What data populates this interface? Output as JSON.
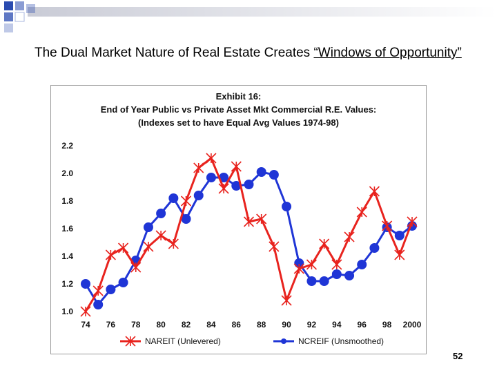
{
  "slide": {
    "title_prefix": "The Dual Market Nature of Real Estate Creates ",
    "title_link": "“Windows of Opportunity”",
    "page_number": "52"
  },
  "colors": {
    "nareit": "#e8231e",
    "ncreif": "#1f35d6",
    "deco_blue": "#2a4bb0",
    "deco_bar": "#c9cbd6"
  },
  "chart_data": {
    "type": "line",
    "title": "Exhibit 16:",
    "subtitle": "End of Year Public vs Private Asset Mkt Commercial R.E. Values:",
    "subtitle2": "(Indexes set to have Equal Avg Values 1974-98)",
    "xlabel": "",
    "ylabel": "",
    "ylim": [
      1.0,
      2.2
    ],
    "yticks": [
      1.0,
      1.2,
      1.4,
      1.6,
      1.8,
      2.0,
      2.2
    ],
    "ytick_labels": [
      "1.0",
      "1.2",
      "1.4",
      "1.6",
      "1.8",
      "2.0",
      "2.2"
    ],
    "xlim": [
      1974,
      2000
    ],
    "x": [
      1974,
      1975,
      1976,
      1977,
      1978,
      1979,
      1980,
      1981,
      1982,
      1983,
      1984,
      1985,
      1986,
      1987,
      1988,
      1989,
      1990,
      1991,
      1992,
      1993,
      1994,
      1995,
      1996,
      1997,
      1998,
      1999,
      2000
    ],
    "xtick_values": [
      1974,
      1976,
      1978,
      1980,
      1982,
      1984,
      1986,
      1988,
      1990,
      1992,
      1994,
      1996,
      1998,
      2000
    ],
    "xtick_labels": [
      "74",
      "76",
      "78",
      "80",
      "82",
      "84",
      "86",
      "88",
      "90",
      "92",
      "94",
      "96",
      "98",
      "2000"
    ],
    "grid": false,
    "legend_position": "bottom",
    "series": [
      {
        "name": "NAREIT (Unlevered)",
        "marker": "star",
        "values": [
          1.0,
          1.15,
          1.41,
          1.46,
          1.32,
          1.47,
          1.55,
          1.49,
          1.8,
          2.04,
          2.11,
          1.89,
          2.05,
          1.65,
          1.67,
          1.47,
          1.08,
          1.31,
          1.34,
          1.49,
          1.34,
          1.54,
          1.72,
          1.87,
          1.62,
          1.41,
          1.65
        ]
      },
      {
        "name": "NCREIF (Unsmoothed)",
        "marker": "circle",
        "values": [
          1.2,
          1.05,
          1.16,
          1.21,
          1.37,
          1.61,
          1.71,
          1.82,
          1.67,
          1.84,
          1.97,
          1.97,
          1.91,
          1.92,
          2.01,
          1.99,
          1.76,
          1.35,
          1.22,
          1.22,
          1.27,
          1.26,
          1.34,
          1.46,
          1.61,
          1.55,
          1.62
        ]
      }
    ]
  }
}
